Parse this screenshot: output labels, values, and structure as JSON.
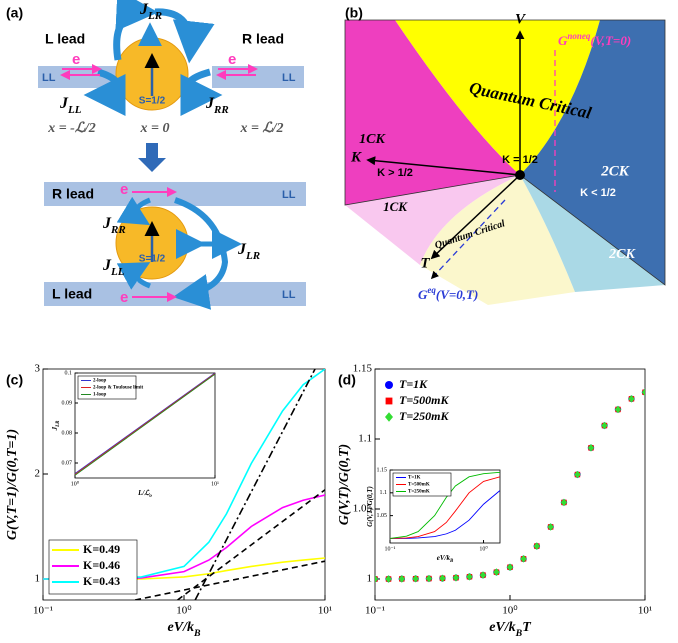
{
  "panel_a": {
    "label": "(a)",
    "top": {
      "left_lead": "L lead",
      "right_lead": "R lead",
      "j_lr": {
        "main": "J",
        "sub": "LR"
      },
      "j_ll": {
        "main": "J",
        "sub": "LL"
      },
      "j_rr": {
        "main": "J",
        "sub": "RR"
      },
      "electron_left": "e",
      "electron_right": "e",
      "ll_left": "LL",
      "ll_right": "LL",
      "spin": "S=1/2",
      "x_left": "x = -ℒ/2",
      "x_center": "x = 0",
      "x_right": "x = ℒ/2"
    },
    "bottom": {
      "upper_lead": "R lead",
      "lower_lead": "L lead",
      "ll_upper": "LL",
      "ll_lower": "LL",
      "electron_upper": "e",
      "electron_lower": "e",
      "spin": "S=1/2",
      "j_rr": {
        "main": "J",
        "sub": "RR"
      },
      "j_lr": {
        "main": "J",
        "sub": "LR"
      },
      "j_ll": {
        "main": "J",
        "sub": "LL"
      }
    }
  },
  "panel_b": {
    "label": "(b)",
    "v_axis": "V",
    "k_axis": "K",
    "t_axis": "T",
    "g_noneq": {
      "main": "G",
      "sup": "noneq",
      "after": "(V,T=0)"
    },
    "g_eq": {
      "main": "G",
      "sup": "eq",
      "after": "(V=0,T)"
    },
    "qc_upper": "Quantum Critical",
    "qc_lower": "Quantum Critical",
    "one_ck_upper": "1CK",
    "one_ck_lower": "1CK",
    "k_gt": "K > 1/2",
    "k_eq": "K = 1/2",
    "two_ck_upper": "2CK",
    "two_ck_lower": "2CK",
    "k_lt": "K < 1/2"
  },
  "chart_data": [
    {
      "type": "line",
      "panel_label": "(c)",
      "xscale": "log",
      "xlabel": [
        {
          "text": "eV/k"
        },
        {
          "text": "B",
          "sub": true
        }
      ],
      "ylabel": [
        {
          "text": "G(V,T=1)/G(0,T=1)"
        }
      ],
      "xlim": [
        0.1,
        10
      ],
      "ylim": [
        0.8,
        3
      ],
      "xticks": [
        {
          "value": 0.1,
          "label": "10⁻¹"
        },
        {
          "value": 1,
          "label": "10⁰"
        },
        {
          "value": 10,
          "label": "10¹"
        }
      ],
      "yticks": [
        1,
        2,
        3
      ],
      "legend": "lower left",
      "series": [
        {
          "name": "K=0.49",
          "color": "#ffff00",
          "x": [
            0.1,
            0.2,
            0.5,
            1,
            1.5,
            2,
            3,
            5,
            7,
            10
          ],
          "values": [
            1,
            1,
            1,
            1.02,
            1.05,
            1.08,
            1.12,
            1.16,
            1.18,
            1.2
          ]
        },
        {
          "name": "K=0.46",
          "color": "#ff00ff",
          "x": [
            0.1,
            0.2,
            0.5,
            1,
            1.5,
            2,
            3,
            5,
            7,
            10
          ],
          "values": [
            1,
            1,
            1.01,
            1.07,
            1.18,
            1.3,
            1.5,
            1.68,
            1.75,
            1.8
          ]
        },
        {
          "name": "K=0.43",
          "color": "#00ffff",
          "x": [
            0.1,
            0.2,
            0.5,
            1,
            1.5,
            2,
            3,
            5,
            7,
            10
          ],
          "values": [
            1,
            1,
            1.02,
            1.12,
            1.35,
            1.62,
            2.1,
            2.6,
            2.85,
            3
          ]
        },
        {
          "color": "#000000",
          "dash": "dashdot",
          "x": [
            1.2,
            8.5
          ],
          "values": [
            0.8,
            3
          ]
        },
        {
          "color": "#000000",
          "dash": "dashed",
          "x": [
            0.45,
            10
          ],
          "values": [
            0.8,
            1.17
          ]
        },
        {
          "color": "#000000",
          "dash": "dashed",
          "x": [
            0.9,
            10
          ],
          "values": [
            0.8,
            1.85
          ]
        }
      ]
    },
    {
      "type": "line",
      "xscale": "log",
      "xlabel": [
        {
          "text": "L/ℒ"
        },
        {
          "text": "o",
          "sub": true
        }
      ],
      "ylabel": [
        {
          "text": "J"
        },
        {
          "text": "LR",
          "sub": true
        }
      ],
      "xlim": [
        1,
        10
      ],
      "ylim": [
        0.065,
        0.1
      ],
      "xticks": [
        {
          "value": 1,
          "label": "10⁰"
        },
        {
          "value": 10,
          "label": "10¹"
        }
      ],
      "yticks": [
        0.07,
        0.08,
        0.09,
        0.1
      ],
      "legend": "upper left",
      "series": [
        {
          "name": "2-loop",
          "color": "#3333cc",
          "x": [
            1,
            10
          ],
          "values": [
            0.0665,
            0.1
          ]
        },
        {
          "name": "2-loop & Toulouse limit",
          "color": "#dd2222",
          "x": [
            1,
            10
          ],
          "values": [
            0.0662,
            0.0998
          ]
        },
        {
          "name": "1-loop",
          "color": "#228822",
          "x": [
            1,
            10
          ],
          "values": [
            0.0659,
            0.0996
          ]
        }
      ]
    },
    {
      "type": "scatter",
      "panel_label": "(d)",
      "xscale": "log",
      "xlabel": [
        {
          "text": "eV/k"
        },
        {
          "text": "B",
          "sub": true
        },
        {
          "text": "T"
        }
      ],
      "ylabel": [
        {
          "text": "G(V,T)/G(0,T)"
        }
      ],
      "xlim": [
        0.1,
        10
      ],
      "ylim": [
        0.985,
        1.15
      ],
      "xticks": [
        {
          "value": 0.1,
          "label": "10⁻¹"
        },
        {
          "value": 1,
          "label": "10⁰"
        },
        {
          "value": 10,
          "label": "10¹"
        }
      ],
      "yticks": [
        1,
        1.05,
        1.1,
        1.15
      ],
      "legend": "upper left",
      "series": [
        {
          "name": "T=1K",
          "color": "#0000ff",
          "marker": "circle",
          "x": [
            0.1,
            0.126,
            0.158,
            0.2,
            0.251,
            0.316,
            0.398,
            0.501,
            0.631,
            0.794,
            1,
            1.26,
            1.58,
            2,
            2.51,
            3.16,
            3.98,
            5.01,
            6.31,
            7.94,
            10
          ],
          "values": [
            1,
            1,
            1.0001,
            1.0002,
            1.0003,
            1.0005,
            1.0009,
            1.0016,
            1.0028,
            1.0049,
            1.0084,
            1.0144,
            1.0235,
            1.0372,
            1.0547,
            1.0746,
            1.0937,
            1.1096,
            1.1211,
            1.1287,
            1.1334
          ]
        },
        {
          "name": "T=500mK",
          "color": "#ff0000",
          "marker": "square",
          "x": [
            0.1,
            0.126,
            0.158,
            0.2,
            0.251,
            0.316,
            0.398,
            0.501,
            0.631,
            0.794,
            1,
            1.26,
            1.58,
            2,
            2.51,
            3.16,
            3.98,
            5.01,
            6.31,
            7.94,
            10
          ],
          "values": [
            1,
            1,
            1.0001,
            1.0002,
            1.0003,
            1.0005,
            1.0009,
            1.0016,
            1.0028,
            1.0049,
            1.0084,
            1.0144,
            1.0235,
            1.0372,
            1.0547,
            1.0746,
            1.0937,
            1.1096,
            1.1211,
            1.1287,
            1.1334
          ]
        },
        {
          "name": "T=250mK",
          "color": "#33dd33",
          "marker": "diamond",
          "x": [
            0.1,
            0.126,
            0.158,
            0.2,
            0.251,
            0.316,
            0.398,
            0.501,
            0.631,
            0.794,
            1,
            1.26,
            1.58,
            2,
            2.51,
            3.16,
            3.98,
            5.01,
            6.31,
            7.94,
            10
          ],
          "values": [
            1,
            1,
            1.0001,
            1.0002,
            1.0003,
            1.0005,
            1.0009,
            1.0016,
            1.0028,
            1.0049,
            1.0084,
            1.0144,
            1.0235,
            1.0372,
            1.0547,
            1.0746,
            1.0937,
            1.1096,
            1.1211,
            1.1287,
            1.1334
          ]
        }
      ]
    },
    {
      "type": "line",
      "xscale": "log",
      "xlabel": [
        {
          "text": "eV/k"
        },
        {
          "text": "B",
          "sub": true
        }
      ],
      "ylabel": [
        {
          "text": "G(V,T)/G(0,T)"
        }
      ],
      "xlim": [
        0.1,
        1.5
      ],
      "ylim": [
        0.99,
        1.15
      ],
      "xticks": [
        {
          "value": 0.1,
          "label": "10⁻¹"
        },
        {
          "value": 1,
          "label": "10⁰"
        }
      ],
      "yticks": [
        1.05,
        1.1,
        1.15
      ],
      "legend": "upper left",
      "series": [
        {
          "name": "T=1K",
          "color": "#0000ff",
          "x": [
            0.1,
            0.15,
            0.2,
            0.3,
            0.4,
            0.5,
            0.7,
            1,
            1.5
          ],
          "values": [
            1,
            1,
            1.001,
            1.004,
            1.01,
            1.018,
            1.04,
            1.075,
            1.105
          ]
        },
        {
          "name": "T=500mK",
          "color": "#ff0000",
          "x": [
            0.1,
            0.15,
            0.2,
            0.3,
            0.4,
            0.5,
            0.7,
            1,
            1.5
          ],
          "values": [
            1,
            1.001,
            1.004,
            1.015,
            1.035,
            1.06,
            1.1,
            1.125,
            1.135
          ]
        },
        {
          "name": "T=250mK",
          "color": "#00bb00",
          "x": [
            0.1,
            0.15,
            0.2,
            0.3,
            0.4,
            0.5,
            0.7,
            1,
            1.5
          ],
          "values": [
            1,
            1.005,
            1.015,
            1.05,
            1.09,
            1.115,
            1.135,
            1.142,
            1.145
          ]
        }
      ]
    }
  ]
}
